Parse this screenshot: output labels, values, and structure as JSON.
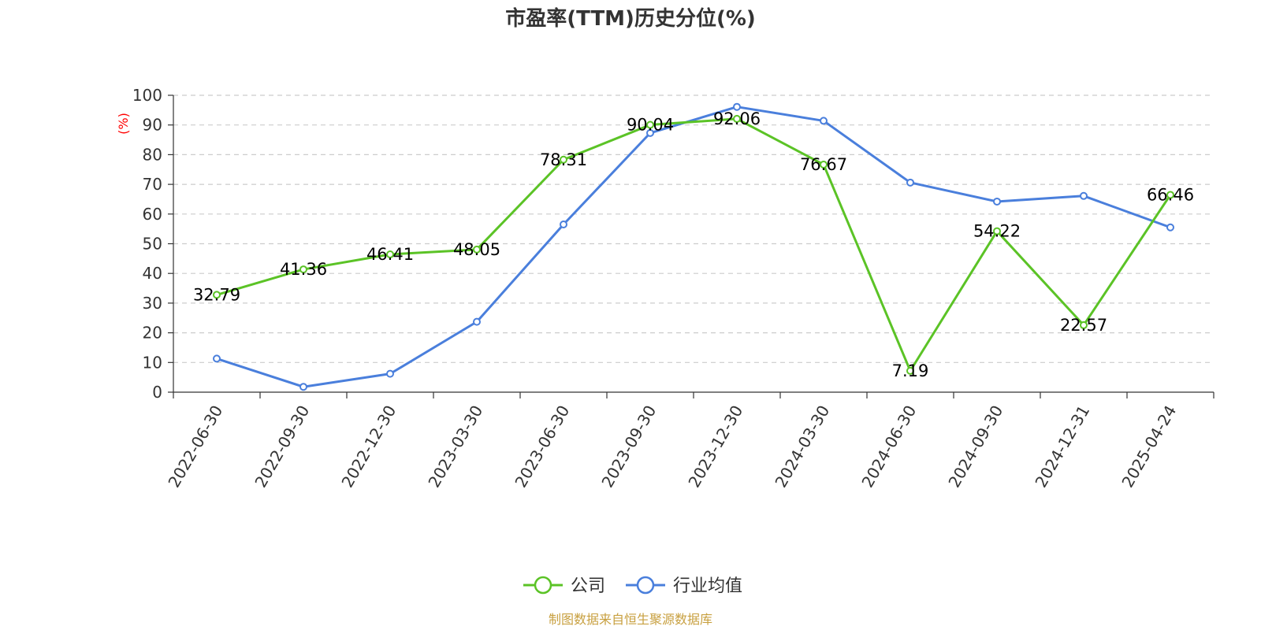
{
  "chart_data": {
    "type": "line",
    "title": "市盈率(TTM)历史分位(%)",
    "ylabel": "(%)",
    "ylim": [
      0,
      100
    ],
    "yticks": [
      0,
      10,
      20,
      30,
      40,
      50,
      60,
      70,
      80,
      90,
      100
    ],
    "categories": [
      "2022-06-30",
      "2022-09-30",
      "2022-12-30",
      "2023-03-30",
      "2023-06-30",
      "2023-09-30",
      "2023-12-30",
      "2024-03-30",
      "2024-06-30",
      "2024-09-30",
      "2024-12-31",
      "2025-04-24"
    ],
    "series": [
      {
        "name": "公司",
        "color": "#5bc326",
        "values": [
          32.79,
          41.36,
          46.41,
          48.05,
          78.31,
          90.04,
          92.06,
          76.67,
          7.19,
          54.22,
          22.57,
          66.46
        ],
        "labels": [
          "32.79",
          "41.36",
          "46.41",
          "48.05",
          "78.31",
          "90.04",
          "92.06",
          "76.67",
          "7.19",
          "54.22",
          "22.57",
          "66.46"
        ]
      },
      {
        "name": "行业均值",
        "color": "#4a7fdc",
        "values": [
          11.3,
          1.8,
          6.2,
          23.7,
          56.5,
          87.3,
          96.1,
          91.4,
          70.6,
          64.2,
          66.1,
          55.5
        ]
      }
    ],
    "grid": true,
    "legend_position": "bottom-center",
    "source": "制图数据来自恒生聚源数据库"
  }
}
